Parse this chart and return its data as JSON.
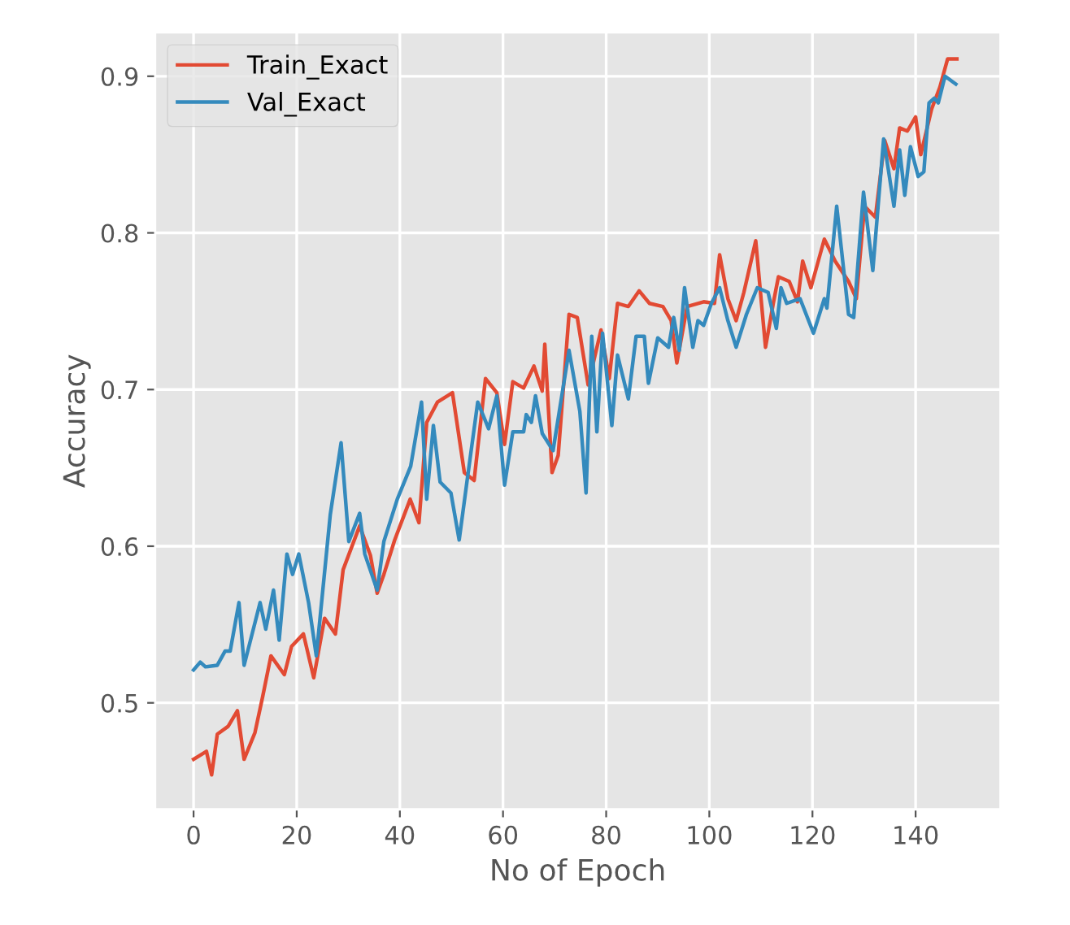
{
  "chart_data": {
    "type": "line",
    "xlabel": "No of Epoch",
    "ylabel": "Accuracy",
    "xlim": [
      -7.45,
      156.45
    ],
    "ylim": [
      0.432,
      0.928
    ],
    "xticks": [
      0,
      20,
      40,
      60,
      80,
      100,
      120,
      140
    ],
    "yticks": [
      0.5,
      0.6,
      0.7,
      0.8,
      0.9
    ],
    "grid": true,
    "legend": "top left",
    "line_style": "solid",
    "series": [
      {
        "name": "Train_Exact",
        "color": "#e24a33",
        "x": [
          0,
          2.5,
          3.5,
          4.6,
          6.7,
          8.5,
          9.8,
          11.9,
          13.4,
          15,
          17.6,
          19,
          21.3,
          23.3,
          25.4,
          27.5,
          29,
          32.2,
          34.3,
          35.6,
          36.9,
          39,
          42,
          43.7,
          45.2,
          47.3,
          50.2,
          52.5,
          54.4,
          56.6,
          58.8,
          60.3,
          61.9,
          64,
          66,
          67.6,
          68.1,
          69.5,
          70.7,
          72.8,
          74.4,
          76.5,
          79,
          80.6,
          82.2,
          84.3,
          86.4,
          88.4,
          91,
          92.6,
          93.7,
          95.7,
          98.9,
          101,
          102,
          103.6,
          105.2,
          106.7,
          109,
          110.9,
          112.4,
          113.4,
          115.5,
          117.1,
          118.1,
          119.7,
          122.3,
          124.4,
          127,
          128.5,
          130.1,
          132.2,
          134,
          135.8,
          136.9,
          138.4,
          140,
          141,
          143.1,
          144.7,
          146.2,
          148
        ],
        "values": [
          0.464,
          0.469,
          0.454,
          0.48,
          0.485,
          0.495,
          0.464,
          0.481,
          0.504,
          0.53,
          0.518,
          0.536,
          0.544,
          0.516,
          0.554,
          0.544,
          0.585,
          0.613,
          0.594,
          0.57,
          0.582,
          0.604,
          0.63,
          0.615,
          0.679,
          0.692,
          0.698,
          0.647,
          0.642,
          0.707,
          0.698,
          0.665,
          0.705,
          0.701,
          0.715,
          0.699,
          0.729,
          0.647,
          0.658,
          0.748,
          0.746,
          0.703,
          0.738,
          0.707,
          0.755,
          0.753,
          0.763,
          0.755,
          0.753,
          0.744,
          0.717,
          0.753,
          0.756,
          0.755,
          0.786,
          0.758,
          0.744,
          0.762,
          0.795,
          0.727,
          0.755,
          0.772,
          0.769,
          0.756,
          0.782,
          0.765,
          0.796,
          0.782,
          0.769,
          0.758,
          0.817,
          0.81,
          0.859,
          0.841,
          0.867,
          0.865,
          0.874,
          0.85,
          0.879,
          0.893,
          0.911,
          0.911
        ]
      },
      {
        "name": "Val_Exact",
        "color": "#348abd",
        "x": [
          0,
          1.3,
          2.3,
          4.6,
          6.1,
          7.1,
          8.8,
          9.8,
          12.9,
          14,
          15.5,
          16.6,
          18.1,
          19.2,
          20.4,
          22.3,
          23.8,
          26.5,
          28.6,
          30.1,
          32.2,
          33.2,
          35.6,
          36.9,
          39.5,
          42.1,
          44.2,
          45.2,
          46.5,
          47.8,
          49.9,
          51.5,
          53,
          55.1,
          57.2,
          58.8,
          60.3,
          61.9,
          64,
          64.5,
          65.5,
          66.3,
          67.6,
          69.7,
          72.8,
          74.9,
          76.1,
          77.2,
          78.2,
          79.3,
          81.1,
          82.2,
          84.3,
          85.8,
          87.4,
          88.2,
          90,
          92.1,
          93.1,
          94.2,
          95.2,
          96.8,
          97.8,
          98.9,
          100.4,
          102,
          103.6,
          105.2,
          107.2,
          109.3,
          111.4,
          113,
          113.9,
          115,
          117.6,
          120.2,
          122.3,
          122.8,
          124.7,
          127,
          128,
          129.9,
          131.7,
          133.8,
          135.8,
          136.9,
          137.9,
          139,
          140.5,
          141.6,
          142.6,
          143.6,
          144.4,
          145.7,
          147.8
        ],
        "values": [
          0.521,
          0.526,
          0.523,
          0.524,
          0.533,
          0.533,
          0.564,
          0.524,
          0.564,
          0.547,
          0.572,
          0.54,
          0.595,
          0.582,
          0.595,
          0.564,
          0.53,
          0.62,
          0.666,
          0.603,
          0.621,
          0.595,
          0.572,
          0.603,
          0.63,
          0.651,
          0.692,
          0.63,
          0.677,
          0.641,
          0.634,
          0.604,
          0.641,
          0.692,
          0.675,
          0.696,
          0.639,
          0.673,
          0.673,
          0.684,
          0.679,
          0.696,
          0.672,
          0.661,
          0.725,
          0.686,
          0.634,
          0.734,
          0.673,
          0.736,
          0.677,
          0.722,
          0.694,
          0.734,
          0.734,
          0.704,
          0.733,
          0.727,
          0.746,
          0.725,
          0.765,
          0.727,
          0.744,
          0.741,
          0.755,
          0.765,
          0.744,
          0.727,
          0.748,
          0.765,
          0.762,
          0.739,
          0.765,
          0.755,
          0.758,
          0.736,
          0.758,
          0.752,
          0.817,
          0.748,
          0.746,
          0.826,
          0.776,
          0.86,
          0.817,
          0.853,
          0.824,
          0.855,
          0.836,
          0.839,
          0.883,
          0.886,
          0.883,
          0.9,
          0.895
        ]
      }
    ]
  }
}
